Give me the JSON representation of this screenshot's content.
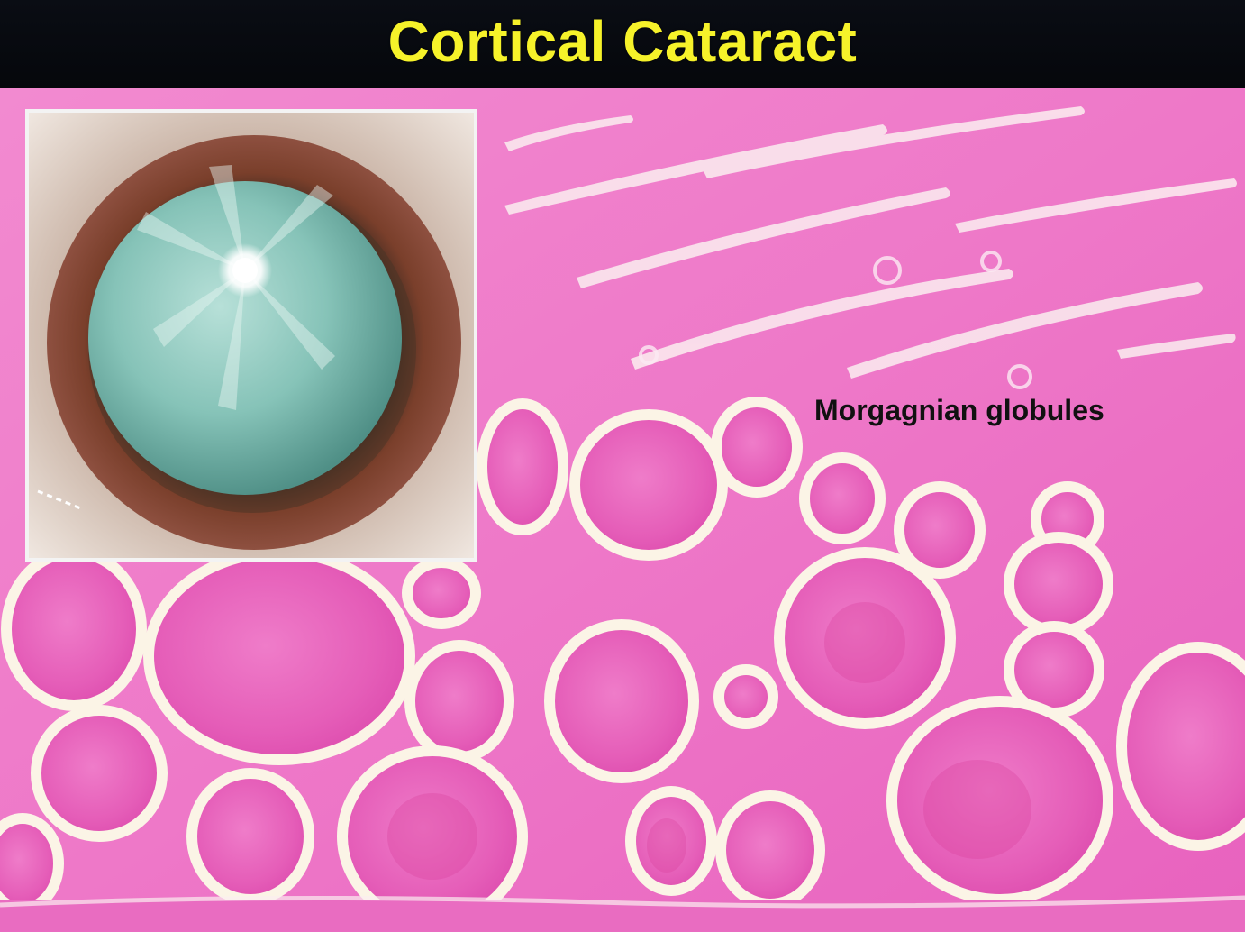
{
  "slide": {
    "title": "Cortical Cataract",
    "annotation": "Morgagnian globules"
  },
  "colors": {
    "title_text": "#f6f22a",
    "title_bar": "#05070b",
    "tissue_pink": "#ec6fc4",
    "globule_pink": "#e24fb4",
    "cleft_cream": "#fbf4e6",
    "lens_teal": "#7fbdb3",
    "iris_brown": "#6b3a28"
  }
}
